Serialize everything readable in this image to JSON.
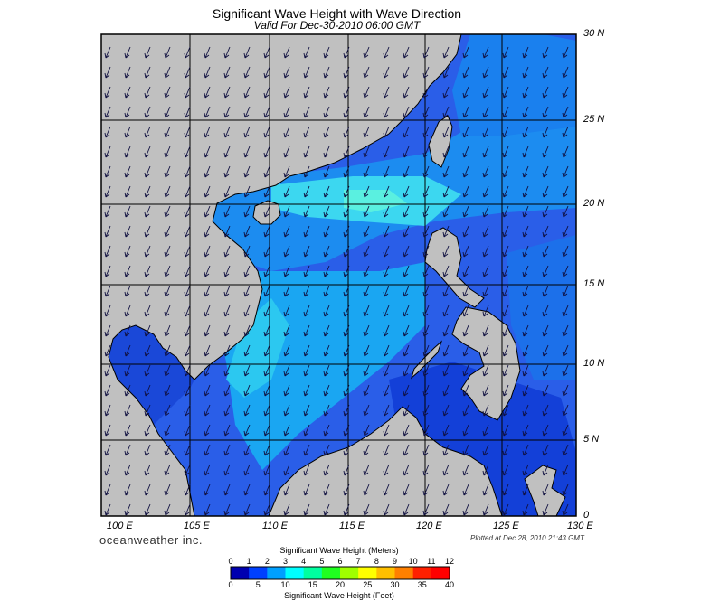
{
  "header": {
    "title": "Significant Wave Height with Wave Direction",
    "subtitle": "Valid For Dec-30-2010 06:00 GMT"
  },
  "map": {
    "lon_range": [
      100,
      130
    ],
    "lat_range": [
      0,
      30
    ],
    "lat_labels": [
      "30 N",
      "25 N",
      "20 N",
      "15 N",
      "10 N",
      "5 N",
      "0"
    ],
    "lon_labels": [
      "100 E",
      "105 E",
      "110 E",
      "115 E",
      "120 E",
      "125 E",
      "130 E"
    ],
    "land_color": "#c0c0c0",
    "ocean_base_color": "#2a5ee8",
    "wave_direction": "arrows point toward the southwest"
  },
  "footer": {
    "brand": "oceanweather inc.",
    "plotted": "Plotted at Dec 28, 2010 21:43 GMT"
  },
  "colorbar": {
    "title_top": "Significant Wave Height (Meters)",
    "title_bottom": "Significant Wave Height (Feet)",
    "meters_ticks": [
      "0",
      "1",
      "2",
      "3",
      "4",
      "5",
      "6",
      "7",
      "8",
      "9",
      "10",
      "11",
      "12"
    ],
    "feet_ticks": [
      "0",
      "5",
      "10",
      "15",
      "20",
      "25",
      "30",
      "35",
      "40"
    ],
    "colors": [
      "#0000b0",
      "#0040ff",
      "#00a0ff",
      "#00ffff",
      "#00ffa0",
      "#20ff20",
      "#a0ff00",
      "#ffff00",
      "#ffc000",
      "#ff8000",
      "#ff2000",
      "#ff0000"
    ]
  }
}
